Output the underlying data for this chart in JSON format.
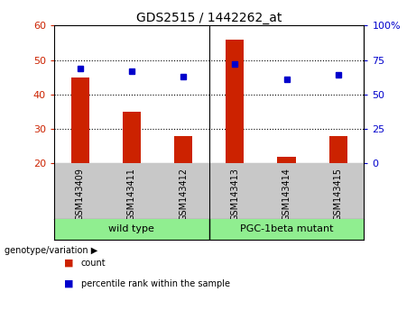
{
  "title": "GDS2515 / 1442262_at",
  "samples": [
    "GSM143409",
    "GSM143411",
    "GSM143412",
    "GSM143413",
    "GSM143414",
    "GSM143415"
  ],
  "bar_values": [
    45,
    35,
    28,
    56,
    22,
    28
  ],
  "bar_bottom": 20,
  "percentile_values": [
    69,
    67,
    63,
    72,
    61,
    64
  ],
  "left_ylim": [
    20,
    60
  ],
  "right_ylim": [
    0,
    100
  ],
  "left_yticks": [
    20,
    30,
    40,
    50,
    60
  ],
  "right_yticks": [
    0,
    25,
    50,
    75,
    100
  ],
  "right_yticklabels": [
    "0",
    "25",
    "50",
    "75",
    "100%"
  ],
  "bar_color": "#cc2200",
  "dot_color": "#0000cc",
  "groups": [
    {
      "label": "wild type",
      "span": [
        0,
        2
      ]
    },
    {
      "label": "PGC-1beta mutant",
      "span": [
        3,
        5
      ]
    }
  ],
  "genotype_label": "genotype/variation",
  "legend_bar_label": "count",
  "legend_dot_label": "percentile rank within the sample",
  "grid_yticks": [
    30,
    40,
    50
  ],
  "group_area_color": "#90ee90",
  "background_color": "#ffffff",
  "plot_bg_color": "#ffffff",
  "xlabel_bg_color": "#c8c8c8"
}
